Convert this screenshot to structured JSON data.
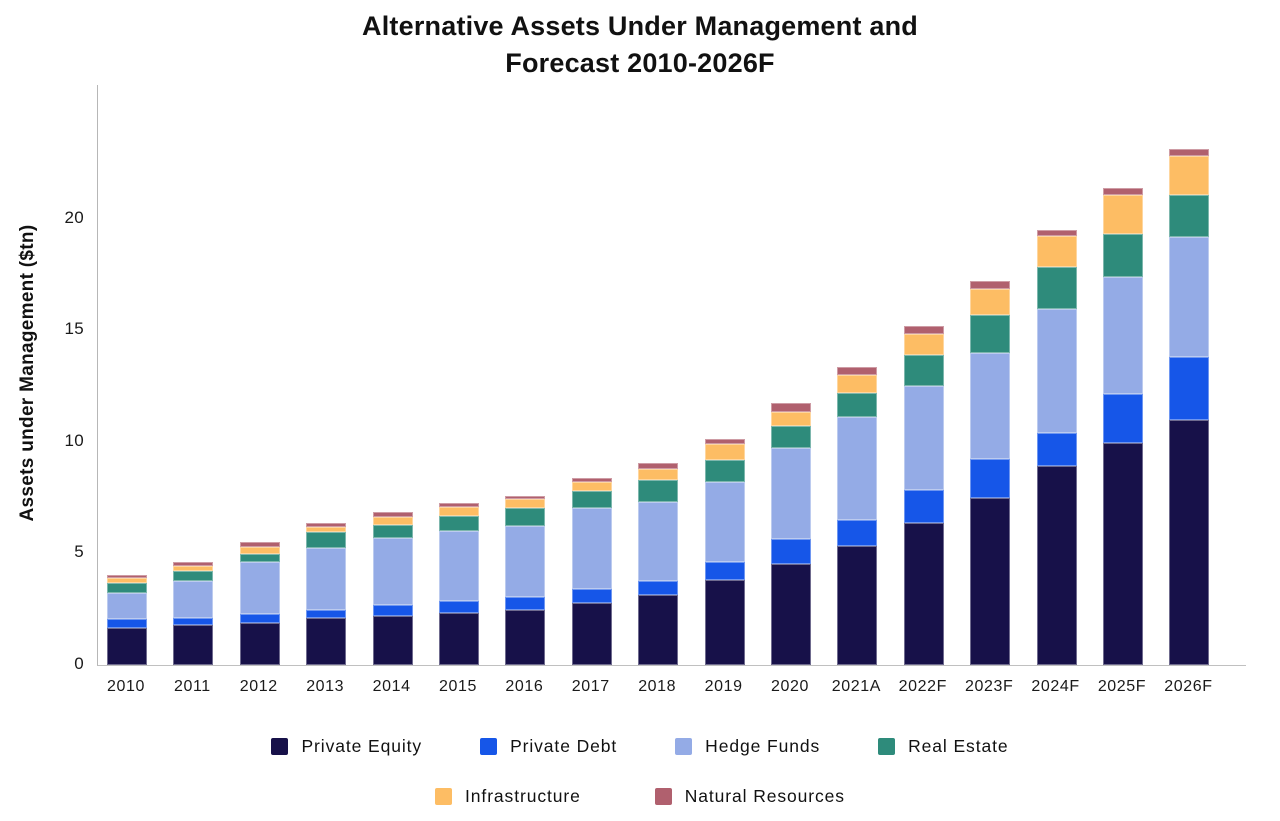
{
  "title": {
    "line1": "Alternative Assets Under Management and",
    "line2": "Forecast 2010-2026F"
  },
  "y_axis": {
    "label": "Assets under Management ($tn)",
    "ticks": [
      0,
      5,
      10,
      15,
      20
    ]
  },
  "chart_data": {
    "type": "bar",
    "stacked": true,
    "title": "Alternative Assets Under Management and Forecast 2010-2026F",
    "xlabel": "",
    "ylabel": "Assets under Management ($tn)",
    "ylim": [
      0,
      26
    ],
    "yticks": [
      0,
      5,
      10,
      15,
      20
    ],
    "grid": false,
    "legend_position": "bottom",
    "categories": [
      "2010",
      "2011",
      "2012",
      "2013",
      "2014",
      "2015",
      "2016",
      "2017",
      "2018",
      "2019",
      "2020",
      "2021A",
      "2022F",
      "2023F",
      "2024F",
      "2025F",
      "2026F"
    ],
    "series": [
      {
        "name": "Private Equity",
        "color": "#171149",
        "values": [
          1.65,
          1.8,
          1.9,
          2.1,
          2.2,
          2.35,
          2.45,
          2.8,
          3.15,
          3.8,
          4.55,
          5.35,
          6.35,
          7.5,
          8.9,
          9.95,
          11.0
        ]
      },
      {
        "name": "Private Debt",
        "color": "#1656e8",
        "values": [
          0.4,
          0.3,
          0.4,
          0.35,
          0.5,
          0.5,
          0.6,
          0.6,
          0.6,
          0.8,
          1.1,
          1.15,
          1.5,
          1.75,
          1.5,
          2.2,
          2.8
        ]
      },
      {
        "name": "Hedge Funds",
        "color": "#94abe6",
        "values": [
          1.2,
          1.65,
          2.3,
          2.8,
          3.0,
          3.15,
          3.2,
          3.65,
          3.55,
          3.6,
          4.1,
          4.6,
          4.65,
          4.75,
          5.55,
          5.25,
          5.4
        ]
      },
      {
        "name": "Real Estate",
        "color": "#2e8b7b",
        "values": [
          0.45,
          0.45,
          0.4,
          0.7,
          0.6,
          0.7,
          0.8,
          0.75,
          1.0,
          1.0,
          0.95,
          1.1,
          1.4,
          1.7,
          1.9,
          1.9,
          1.85
        ]
      },
      {
        "name": "Infrastructure",
        "color": "#fdbd64",
        "values": [
          0.2,
          0.25,
          0.3,
          0.25,
          0.35,
          0.4,
          0.4,
          0.4,
          0.5,
          0.7,
          0.65,
          0.8,
          0.95,
          1.15,
          1.4,
          1.75,
          1.75
        ]
      },
      {
        "name": "Natural Resources",
        "color": "#b0606e",
        "values": [
          0.15,
          0.15,
          0.2,
          0.15,
          0.2,
          0.15,
          0.15,
          0.2,
          0.25,
          0.25,
          0.4,
          0.35,
          0.35,
          0.35,
          0.25,
          0.35,
          0.35
        ]
      }
    ],
    "totals": [
      4.05,
      4.6,
      5.5,
      6.35,
      6.85,
      7.25,
      7.6,
      8.4,
      9.05,
      10.15,
      11.75,
      13.35,
      15.2,
      17.2,
      19.5,
      21.4,
      23.15
    ]
  },
  "legend": {
    "rows": [
      [
        "Private Equity",
        "Private Debt",
        "Hedge Funds",
        "Real Estate"
      ],
      [
        "Infrastructure",
        "Natural Resources"
      ]
    ]
  }
}
